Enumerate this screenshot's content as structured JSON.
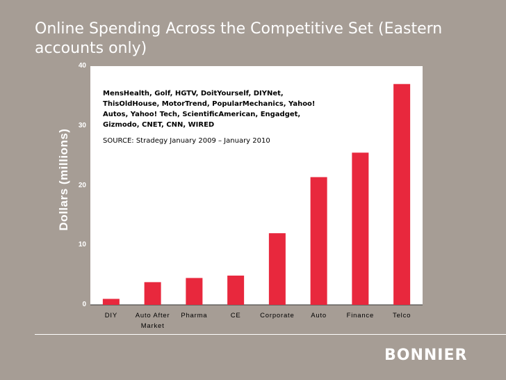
{
  "slide": {
    "title": "Online Spending Across the Competitive Set (Eastern accounts only)",
    "logo_text": "BONNIER"
  },
  "colors": {
    "background": "#a69d95",
    "bar": "#e8283d",
    "panel": "#ffffff"
  },
  "chart_data": {
    "type": "bar",
    "title": "",
    "xlabel": "",
    "ylabel": "Dollars (millions)",
    "ylim": [
      0,
      40
    ],
    "yticks": [
      0,
      10,
      20,
      30,
      40
    ],
    "categories": [
      "DIY",
      "Auto After Market",
      "Pharma",
      "CE",
      "Corporate",
      "Auto",
      "Finance",
      "Telco"
    ],
    "values": [
      1,
      3.8,
      4.5,
      4.9,
      12,
      21.4,
      25.5,
      37
    ],
    "grid": false,
    "annotations": {
      "list": "MensHealth, Golf, HGTV, DoitYourself, DIYNet, ThisOldHouse, MotorTrend, PopularMechanics, Yahoo! Autos, Yahoo! Tech, ScientificAmerican, Engadget, Gizmodo, CNET, CNN, WIRED",
      "source": "SOURCE: Stradegy January 2009 – January 2010"
    }
  }
}
